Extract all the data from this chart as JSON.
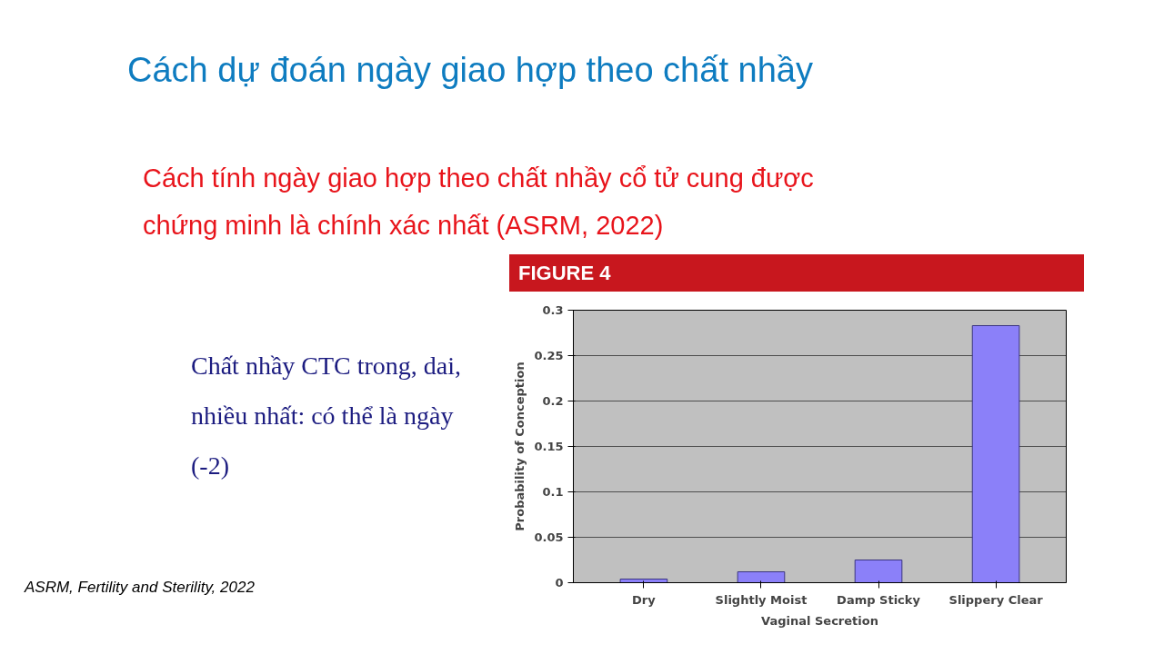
{
  "chart_data": {
    "type": "bar",
    "title": "Cách dự đoán ngày giao hợp theo chất nhầy",
    "subtitle": "Cách tính ngày giao hợp theo chất nhầy cổ tử cung được chứng minh là chính xác nhất (ASRM, 2022)",
    "annotations": [
      "FIGURE 4",
      "Chất nhầy CTC trong, dai, nhiều nhất: có thể là ngày (-2)",
      "ASRM, Fertility and Sterility, 2022"
    ],
    "xlabel": "Vaginal Secretion",
    "ylabel": "Probability of Conception",
    "categories": [
      "Dry",
      "Slightly Moist",
      "Damp Sticky",
      "Slippery Clear"
    ],
    "values": [
      0.004,
      0.012,
      0.025,
      0.283
    ],
    "color": "#8b80f9",
    "ylim": [
      0,
      0.3
    ],
    "yticks": [
      0,
      0.05,
      0.1,
      0.15,
      0.2,
      0.25,
      0.3
    ],
    "grid": "y"
  }
}
